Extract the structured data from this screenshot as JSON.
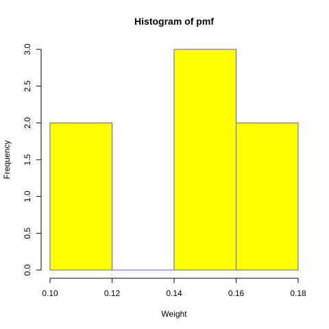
{
  "chart_data": {
    "type": "bar",
    "title": "Histogram of pmf",
    "xlabel": "Weight",
    "ylabel": "Frequency",
    "bins": [
      {
        "x0": 0.1,
        "x1": 0.12,
        "count": 2
      },
      {
        "x0": 0.12,
        "x1": 0.14,
        "count": 0
      },
      {
        "x0": 0.14,
        "x1": 0.16,
        "count": 3
      },
      {
        "x0": 0.16,
        "x1": 0.18,
        "count": 2
      }
    ],
    "xlim": [
      0.1,
      0.18
    ],
    "ylim": [
      0,
      3
    ],
    "x_ticks": [
      "0.10",
      "0.12",
      "0.14",
      "0.16",
      "0.18"
    ],
    "y_ticks": [
      "0.0",
      "0.5",
      "1.0",
      "1.5",
      "2.0",
      "2.5",
      "3.0"
    ],
    "grid": false,
    "bar_fill": "#ffff00",
    "bar_border": "#5a5acd"
  }
}
